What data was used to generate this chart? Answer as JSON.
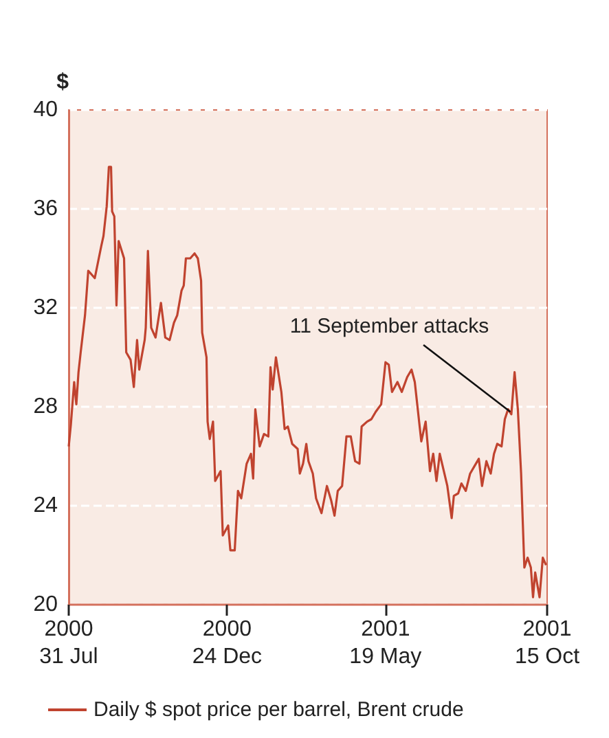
{
  "chart_data": {
    "type": "line",
    "ylabel": "$",
    "x": [
      "2000-07-31",
      "2000-08-02",
      "2000-08-05",
      "2000-08-07",
      "2000-08-09",
      "2000-08-11",
      "2000-08-15",
      "2000-08-18",
      "2000-08-24",
      "2000-08-30",
      "2000-09-01",
      "2000-09-04",
      "2000-09-06",
      "2000-09-08",
      "2000-09-09",
      "2000-09-11",
      "2000-09-13",
      "2000-09-15",
      "2000-09-20",
      "2000-09-22",
      "2000-09-26",
      "2000-09-29",
      "2000-10-02",
      "2000-10-04",
      "2000-10-09",
      "2000-10-10",
      "2000-10-12",
      "2000-10-15",
      "2000-10-19",
      "2000-10-24",
      "2000-10-28",
      "2000-11-01",
      "2000-11-05",
      "2000-11-08",
      "2000-11-12",
      "2000-11-14",
      "2000-11-16",
      "2000-11-20",
      "2000-11-24",
      "2000-11-27",
      "2000-11-30",
      "2000-12-01",
      "2000-12-05",
      "2000-12-06",
      "2000-12-08",
      "2000-12-11",
      "2000-12-13",
      "2000-12-18",
      "2000-12-20",
      "2000-12-25",
      "2000-12-27",
      "2000-12-31",
      "2001-01-03",
      "2001-01-06",
      "2001-01-11",
      "2001-01-15",
      "2001-01-17",
      "2001-01-19",
      "2001-01-23",
      "2001-01-27",
      "2001-01-31",
      "2001-02-02",
      "2001-02-04",
      "2001-02-07",
      "2001-02-12",
      "2001-02-15",
      "2001-02-18",
      "2001-02-22",
      "2001-02-27",
      "2001-03-01",
      "2001-03-04",
      "2001-03-07",
      "2001-03-09",
      "2001-03-13",
      "2001-03-16",
      "2001-03-21",
      "2001-03-26",
      "2001-03-30",
      "2001-04-02",
      "2001-04-05",
      "2001-04-09",
      "2001-04-13",
      "2001-04-17",
      "2001-04-21",
      "2001-04-25",
      "2001-04-27",
      "2001-05-02",
      "2001-05-06",
      "2001-05-10",
      "2001-05-15",
      "2001-05-19",
      "2001-05-22",
      "2001-05-25",
      "2001-05-30",
      "2001-06-03",
      "2001-06-08",
      "2001-06-12",
      "2001-06-15",
      "2001-06-21",
      "2001-06-25",
      "2001-06-29",
      "2001-07-02",
      "2001-07-05",
      "2001-07-08",
      "2001-07-15",
      "2001-07-19",
      "2001-07-21",
      "2001-07-25",
      "2001-07-28",
      "2001-08-01",
      "2001-08-05",
      "2001-08-09",
      "2001-08-13",
      "2001-08-16",
      "2001-08-20",
      "2001-08-24",
      "2001-08-27",
      "2001-08-30",
      "2001-09-03",
      "2001-09-06",
      "2001-09-09",
      "2001-09-12",
      "2001-09-15",
      "2001-09-18",
      "2001-09-21",
      "2001-09-24",
      "2001-09-27",
      "2001-09-30",
      "2001-10-02",
      "2001-10-04",
      "2001-10-08",
      "2001-10-11",
      "2001-10-14"
    ],
    "series": [
      {
        "name": "Daily $ spot price per barrel, Brent crude",
        "color": "#c0432f",
        "values": [
          26.4,
          27.3,
          29.0,
          28.1,
          29.4,
          30.2,
          31.7,
          33.5,
          33.2,
          34.5,
          34.9,
          36.1,
          37.7,
          37.7,
          35.9,
          35.7,
          32.1,
          34.7,
          34.0,
          30.2,
          29.9,
          28.8,
          30.7,
          29.5,
          30.7,
          31.2,
          34.3,
          31.2,
          30.8,
          32.2,
          30.8,
          30.7,
          31.4,
          31.7,
          32.7,
          32.9,
          34.0,
          34.0,
          34.2,
          34.0,
          33.1,
          31.0,
          30.0,
          27.4,
          26.7,
          27.4,
          25.0,
          25.4,
          22.8,
          23.2,
          22.2,
          22.2,
          24.6,
          24.3,
          25.7,
          26.1,
          25.1,
          27.9,
          26.4,
          26.9,
          26.8,
          29.6,
          28.7,
          30.0,
          28.6,
          27.1,
          27.2,
          26.5,
          26.3,
          25.3,
          25.7,
          26.5,
          25.8,
          25.3,
          24.3,
          23.7,
          24.8,
          24.2,
          23.6,
          24.6,
          24.8,
          26.8,
          26.8,
          25.8,
          25.7,
          27.2,
          27.4,
          27.5,
          27.8,
          28.1,
          29.8,
          29.7,
          28.6,
          29.0,
          28.6,
          29.2,
          29.5,
          29.0,
          26.6,
          27.4,
          25.4,
          26.1,
          25.0,
          26.1,
          24.8,
          23.5,
          24.4,
          24.5,
          24.9,
          24.6,
          25.3,
          25.6,
          25.9,
          24.8,
          25.8,
          25.3,
          26.1,
          26.5,
          26.4,
          27.5,
          27.9,
          27.7,
          29.4,
          27.9,
          25.3,
          21.5,
          21.9,
          21.5,
          20.3,
          21.3,
          20.3,
          21.9,
          21.6
        ]
      }
    ],
    "xlim": [
      "2000-07-31",
      "2001-10-15"
    ],
    "xticks": [
      {
        "value": "2000-07-31",
        "label": "2000\n31 Jul"
      },
      {
        "value": "2000-12-24",
        "label": "2000\n24 Dec"
      },
      {
        "value": "2001-05-19",
        "label": "2001\n19 May"
      },
      {
        "value": "2001-10-15",
        "label": "2001\n15 Oct"
      }
    ],
    "ylim": [
      20,
      40
    ],
    "yticks": [
      20,
      24,
      28,
      32,
      36,
      40
    ],
    "annotations": [
      {
        "text": "11 September attacks",
        "x": "2001-09-11",
        "y": 27.8
      }
    ],
    "grid": "y",
    "legend": "bottom",
    "marker": "none"
  }
}
